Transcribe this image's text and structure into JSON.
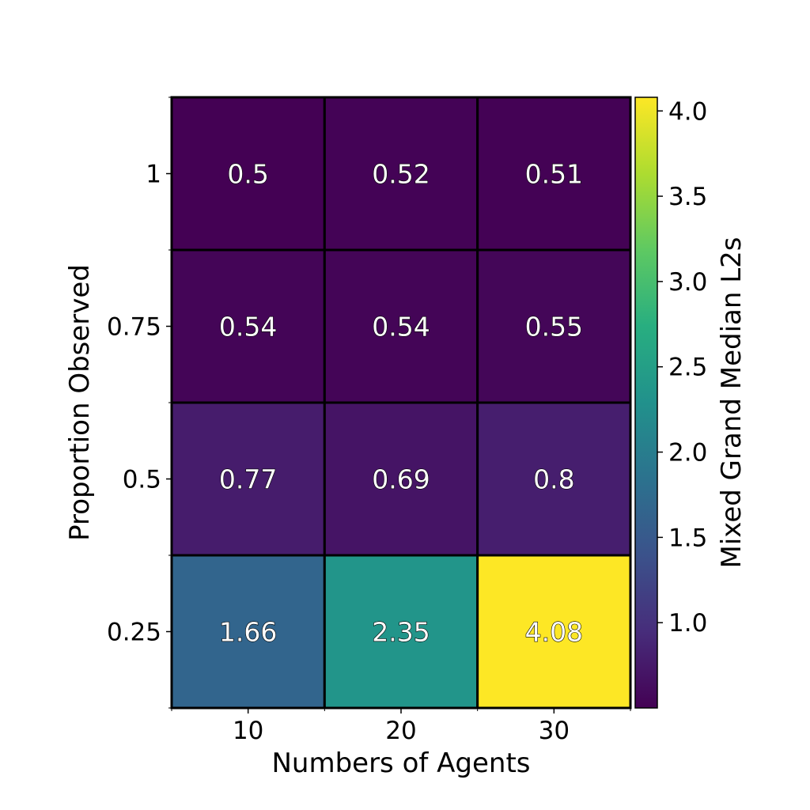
{
  "chart_data": {
    "type": "heatmap",
    "title": "",
    "xlabel": "Numbers of Agents",
    "ylabel": "Proportion Observed",
    "x_categories": [
      "10",
      "20",
      "30"
    ],
    "y_categories": [
      "1",
      "0.75",
      "0.5",
      "0.25"
    ],
    "values": [
      [
        0.5,
        0.52,
        0.51
      ],
      [
        0.54,
        0.54,
        0.55
      ],
      [
        0.77,
        0.69,
        0.8
      ],
      [
        1.66,
        2.35,
        4.08
      ]
    ],
    "cell_labels": [
      [
        "0.5",
        "0.52",
        "0.51"
      ],
      [
        "0.54",
        "0.54",
        "0.55"
      ],
      [
        "0.77",
        "0.69",
        "0.8"
      ],
      [
        "1.66",
        "2.35",
        "4.08"
      ]
    ],
    "colormap": "viridis",
    "colorbar": {
      "label": "Mixed Grand Median L2s",
      "range": [
        0.5,
        4.08
      ],
      "ticks": [
        "1.0",
        "1.5",
        "2.0",
        "2.5",
        "3.0",
        "3.5",
        "4.0"
      ],
      "tick_values": [
        1.0,
        1.5,
        2.0,
        2.5,
        3.0,
        3.5,
        4.0
      ]
    }
  }
}
